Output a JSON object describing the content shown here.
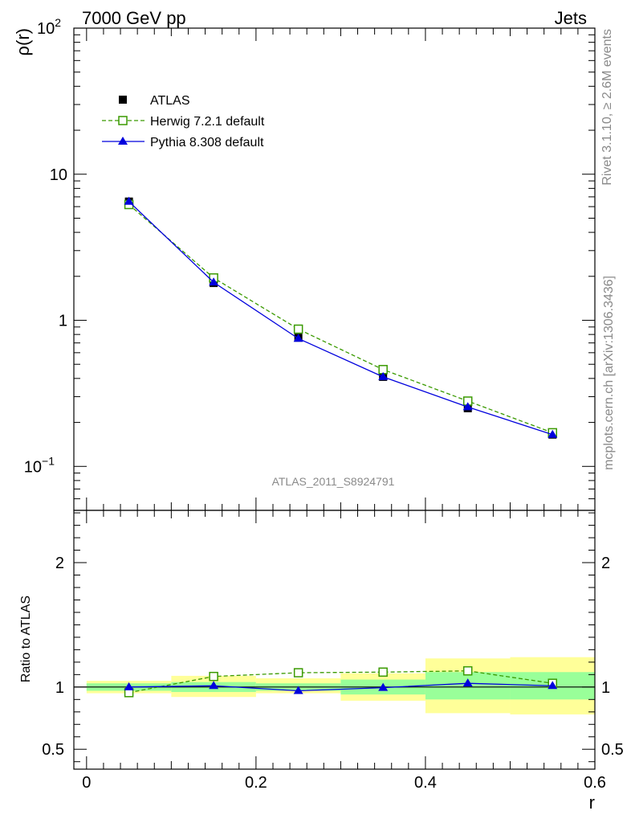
{
  "chart_data": [
    {
      "type": "line",
      "title_left": "7000 GeV pp",
      "title_right": "Jets",
      "ylabel": "ρ(r)",
      "xlabel": "r",
      "yscale": "log",
      "ylim": [
        0.05,
        100
      ],
      "xlim": [
        -0.015,
        0.6
      ],
      "y_ticks": [
        {
          "value": 100,
          "label": "10",
          "exp": "2"
        },
        {
          "value": 10,
          "label": "10",
          "exp": ""
        },
        {
          "value": 1,
          "label": "1",
          "exp": ""
        },
        {
          "value": 0.1,
          "label": "10",
          "exp": "−1"
        }
      ],
      "x": [
        0.05,
        0.15,
        0.25,
        0.35,
        0.45,
        0.55
      ],
      "series": [
        {
          "name": "ATLAS",
          "values": [
            6.5,
            1.8,
            0.76,
            0.41,
            0.25,
            0.165
          ],
          "color": "#000000",
          "marker": "square-filled",
          "line": "none"
        },
        {
          "name": "Herwig 7.2.1 default",
          "values": [
            6.2,
            1.95,
            0.87,
            0.46,
            0.28,
            0.17
          ],
          "color": "#3a9a00",
          "marker": "square-open",
          "line": "dashed"
        },
        {
          "name": "Pythia 8.308 default",
          "values": [
            6.5,
            1.82,
            0.75,
            0.41,
            0.255,
            0.165
          ],
          "color": "#0000dd",
          "marker": "triangle-filled",
          "line": "solid"
        }
      ],
      "annotation": "ATLAS_2011_S8924791",
      "legend_position": "top-left"
    },
    {
      "type": "line",
      "ylabel": "Ratio to ATLAS",
      "xlabel": "r",
      "ylim": [
        0.34,
        2.42
      ],
      "xlim": [
        -0.015,
        0.6
      ],
      "y_ticks": [
        {
          "value": 2,
          "label": "2"
        },
        {
          "value": 1,
          "label": "1"
        },
        {
          "value": 0.5,
          "label": "0.5"
        }
      ],
      "x_ticks": [
        {
          "value": 0,
          "label": "0"
        },
        {
          "value": 0.2,
          "label": "0.2"
        },
        {
          "value": 0.4,
          "label": "0.4"
        },
        {
          "value": 0.6,
          "label": "0.6"
        }
      ],
      "bin_edges": [
        0,
        0.1,
        0.2,
        0.3,
        0.4,
        0.5,
        0.6
      ],
      "uncertainty_bands": {
        "outer_color": "#ffff99",
        "inner_color": "#99ff99",
        "outer": [
          [
            0.95,
            1.05
          ],
          [
            0.92,
            1.09
          ],
          [
            0.95,
            1.07
          ],
          [
            0.89,
            1.11
          ],
          [
            0.79,
            1.23
          ],
          [
            0.78,
            1.24
          ]
        ],
        "inner": [
          [
            0.97,
            1.03
          ],
          [
            0.96,
            1.04
          ],
          [
            0.97,
            1.03
          ],
          [
            0.94,
            1.06
          ],
          [
            0.9,
            1.12
          ],
          [
            0.9,
            1.12
          ]
        ]
      },
      "x": [
        0.05,
        0.15,
        0.25,
        0.35,
        0.45,
        0.55
      ],
      "series": [
        {
          "name": "Herwig 7.2.1 default",
          "values": [
            0.955,
            1.085,
            1.115,
            1.12,
            1.13,
            1.03
          ],
          "color": "#3a9a00",
          "marker": "square-open",
          "line": "dashed"
        },
        {
          "name": "Pythia 8.308 default",
          "values": [
            1.0,
            1.01,
            0.97,
            0.995,
            1.03,
            1.01
          ],
          "color": "#0000dd",
          "marker": "triangle-filled",
          "line": "solid"
        }
      ]
    }
  ],
  "side_labels": {
    "rivet": "Rivet 3.1.10, ≥ 2.6M events",
    "mcplots": "mcplots.cern.ch [arXiv:1306.3436]"
  }
}
